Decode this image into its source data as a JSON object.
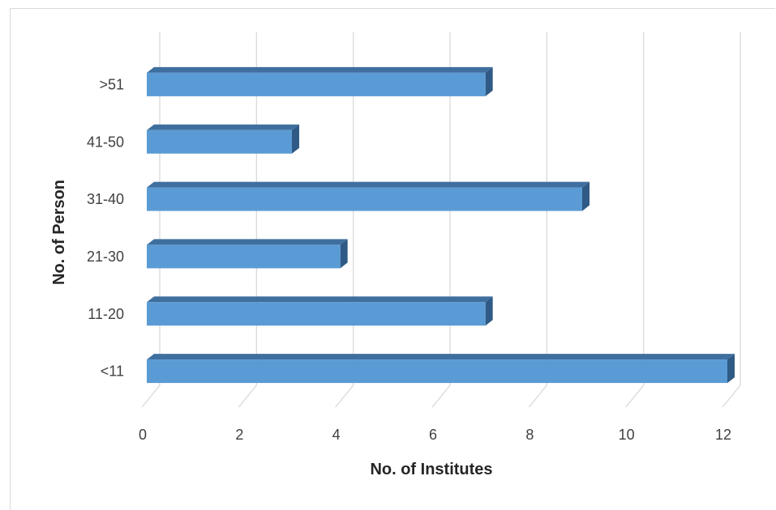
{
  "chart_data": {
    "type": "bar",
    "orientation": "horizontal",
    "style": "3d",
    "title": "",
    "xlabel": "No. of Institutes",
    "ylabel": "No. of Person",
    "categories": [
      "<11",
      "11-20",
      "21-30",
      "31-40",
      "41-50",
      ">51"
    ],
    "values": [
      12,
      7,
      4,
      9,
      3,
      7
    ],
    "xlim": [
      0,
      12
    ],
    "xticks": [
      "0",
      "2",
      "4",
      "6",
      "8",
      "10",
      "12"
    ],
    "grid": "vertical",
    "legend": "none",
    "colors": {
      "bar_front": "#5b9bd5",
      "bar_top": "#3f6f9f",
      "bar_side": "#2f5a85",
      "grid": "#d9d9d9"
    }
  }
}
